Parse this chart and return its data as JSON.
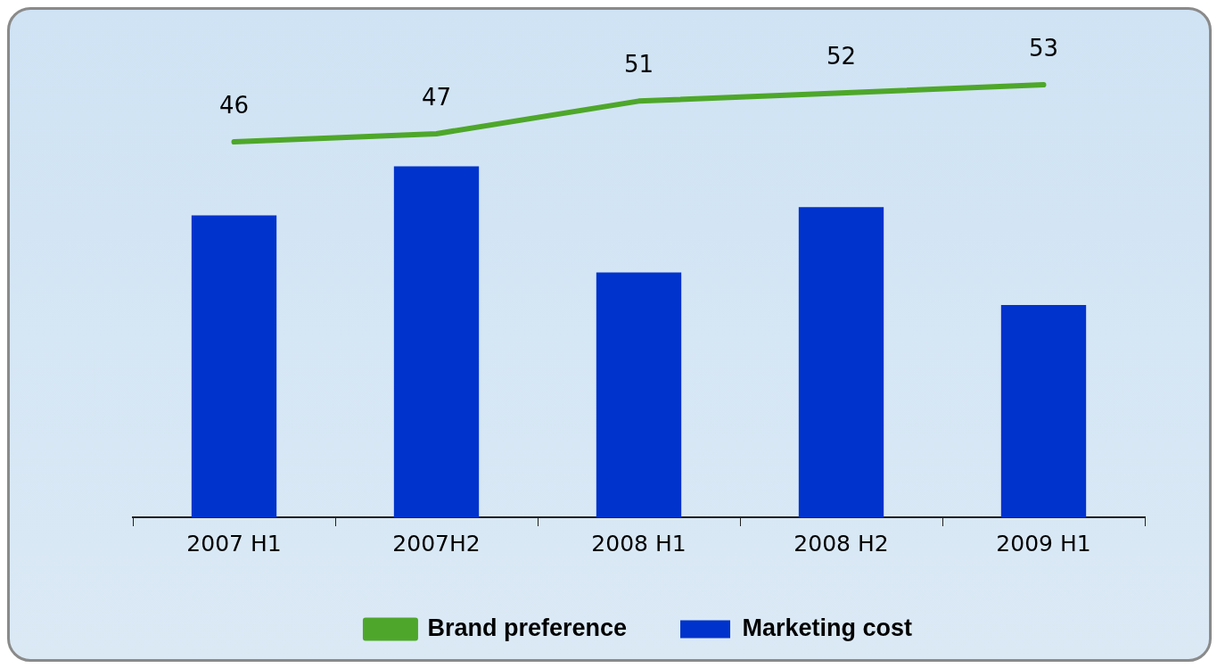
{
  "chart_data": {
    "type": "bar",
    "categories": [
      "2007 H1",
      "2007H2",
      "2008 H1",
      "2008 H2",
      "2009 H1"
    ],
    "series": [
      {
        "name": "Brand preference",
        "type": "line",
        "color": "#4ea72a",
        "values": [
          46,
          47,
          51,
          52,
          53
        ],
        "value_labels": [
          "46",
          "47",
          "51",
          "52",
          "53"
        ]
      },
      {
        "name": "Marketing cost",
        "color": "#0033cc",
        "values": [
          37,
          43,
          30,
          38,
          26
        ]
      }
    ],
    "legend": "bottom",
    "grid": false
  }
}
